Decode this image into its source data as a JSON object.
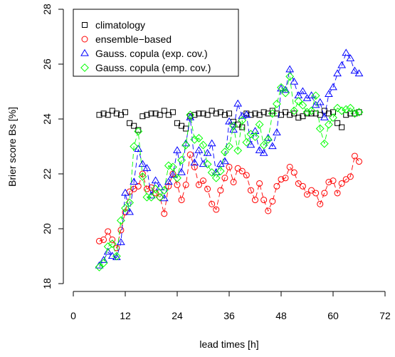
{
  "chart_data": {
    "type": "scatter",
    "xlabel": "lead times [h]",
    "ylabel": "Brier score Bs [%]",
    "xlim": [
      0,
      72
    ],
    "ylim": [
      18,
      28
    ],
    "x_ticks": [
      "0",
      "12",
      "24",
      "36",
      "48",
      "60",
      "72"
    ],
    "y_ticks": [
      "18",
      "20",
      "22",
      "24",
      "26",
      "28"
    ],
    "legend_position": "top-left",
    "grid": false,
    "x": [
      6,
      7,
      8,
      9,
      10,
      11,
      12,
      13,
      14,
      15,
      16,
      17,
      18,
      19,
      20,
      21,
      22,
      23,
      24,
      25,
      26,
      27,
      28,
      29,
      30,
      31,
      32,
      33,
      34,
      35,
      36,
      37,
      38,
      39,
      40,
      41,
      42,
      43,
      44,
      45,
      46,
      47,
      48,
      49,
      50,
      51,
      52,
      53,
      54,
      55,
      56,
      57,
      58,
      59,
      60,
      61,
      62,
      63,
      64,
      65,
      66
    ],
    "series": [
      {
        "name": "climatology",
        "marker": "square",
        "color": "#000000",
        "connect": false,
        "values": [
          24.15,
          24.2,
          24.15,
          24.3,
          24.2,
          24.15,
          24.25,
          23.85,
          23.75,
          23.6,
          24.1,
          24.15,
          24.2,
          24.2,
          24.15,
          24.3,
          24.15,
          24.25,
          23.85,
          23.75,
          23.65,
          24.1,
          24.15,
          24.2,
          24.2,
          24.15,
          24.3,
          24.2,
          24.25,
          24.15,
          24.2,
          23.9,
          23.8,
          23.7,
          24.2,
          24.15,
          24.2,
          24.15,
          24.25,
          24.2,
          24.3,
          24.2,
          24.15,
          24.25,
          24.15,
          24.2,
          24.05,
          24.1,
          24.2,
          24.2,
          24.2,
          24.15,
          24.3,
          24.2,
          24.25,
          23.85,
          23.7,
          24.15,
          24.2,
          24.2,
          24.25
        ]
      },
      {
        "name": "ensemble−based",
        "marker": "circle",
        "color": "#ff0000",
        "connect": true,
        "values": [
          19.55,
          19.6,
          19.9,
          19.6,
          19.3,
          19.95,
          20.6,
          21.35,
          21.45,
          21.55,
          22.0,
          21.45,
          21.5,
          21.3,
          21.15,
          20.55,
          21.55,
          22.0,
          21.6,
          21.05,
          21.6,
          22.7,
          22.25,
          21.6,
          21.75,
          21.45,
          20.9,
          20.7,
          21.4,
          21.85,
          22.25,
          21.7,
          22.2,
          22.1,
          21.95,
          21.4,
          21.05,
          21.65,
          21.05,
          20.65,
          21.0,
          21.55,
          21.8,
          21.85,
          22.25,
          22.05,
          21.65,
          21.55,
          21.25,
          21.4,
          21.3,
          20.9,
          21.3,
          21.7,
          21.75,
          21.3,
          21.65,
          21.8,
          21.9,
          22.65,
          22.45
        ]
      },
      {
        "name": "Gauss. copula (exp. cov.)",
        "marker": "triangle",
        "color": "#0000ff",
        "connect": true,
        "values": [
          18.65,
          18.85,
          19.15,
          19.0,
          18.95,
          19.5,
          21.3,
          20.6,
          21.7,
          22.9,
          22.35,
          22.2,
          21.2,
          21.75,
          21.5,
          21.1,
          21.7,
          21.95,
          22.85,
          22.05,
          23.1,
          24.05,
          22.4,
          22.85,
          22.35,
          22.75,
          23.1,
          22.05,
          22.35,
          22.45,
          23.9,
          23.6,
          24.55,
          24.1,
          24.15,
          23.05,
          23.55,
          22.85,
          22.75,
          23.3,
          23.0,
          23.5,
          25.1,
          25.05,
          25.8,
          25.35,
          24.85,
          25.0,
          24.75,
          24.85,
          24.5,
          24.6,
          24.05,
          24.9,
          25.15,
          25.65,
          25.95,
          26.4,
          26.2,
          25.75,
          25.65
        ]
      },
      {
        "name": "Gauss. copula (emp. cov.)",
        "marker": "diamond",
        "color": "#00ff00",
        "connect": true,
        "values": [
          18.6,
          18.75,
          19.35,
          19.45,
          19.0,
          20.3,
          20.75,
          20.95,
          23.0,
          23.55,
          21.9,
          21.15,
          21.15,
          21.45,
          21.15,
          21.4,
          22.3,
          22.25,
          21.85,
          22.5,
          23.05,
          24.15,
          23.25,
          23.3,
          23.05,
          22.35,
          22.05,
          21.85,
          22.1,
          22.8,
          23.0,
          23.75,
          22.85,
          23.95,
          23.15,
          23.45,
          23.35,
          23.8,
          23.05,
          23.25,
          24.2,
          24.55,
          25.15,
          24.95,
          25.55,
          24.3,
          24.65,
          24.5,
          24.25,
          24.3,
          24.85,
          23.65,
          23.1,
          23.8,
          24.05,
          24.4,
          24.3,
          24.35,
          24.4,
          24.2,
          24.25
        ]
      }
    ]
  }
}
